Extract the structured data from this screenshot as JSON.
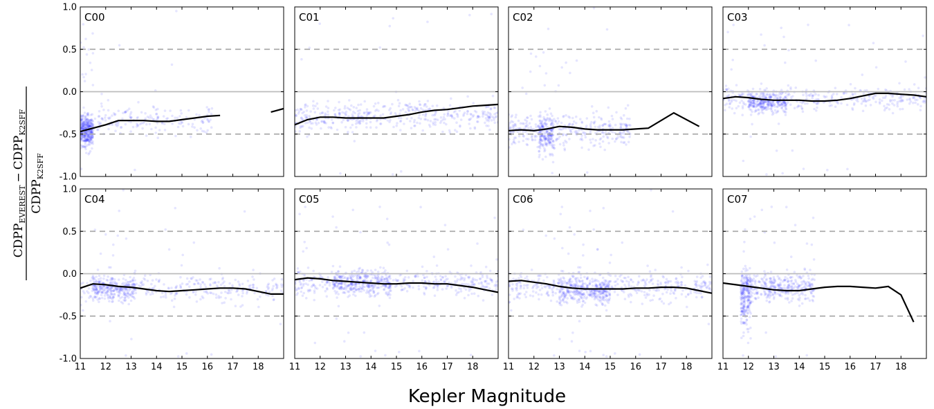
{
  "figure": {
    "xlabel": "Kepler Magnitude",
    "ylabel": {
      "numerator_prefix": "CDPP",
      "numerator_sub": "EVEREST",
      "minus": "−",
      "numerator_suffix": "CDPP",
      "numerator_suffix_sub": "K2SFF",
      "denominator": "CDPP",
      "denominator_sub": "K2SFF"
    },
    "colors": {
      "points": "#0000ff",
      "median": "#000000",
      "zero_line": "#bbbbbb",
      "dashed_lines": "#aaaaaa"
    }
  },
  "chart_data": [
    {
      "type": "scatter",
      "title": "C00",
      "xlim": [
        11,
        19
      ],
      "ylim": [
        -1.0,
        1.0
      ],
      "xticks": [
        11,
        12,
        13,
        14,
        15,
        16,
        17,
        18
      ],
      "yticks": [
        -1.0,
        -0.5,
        0.0,
        0.5,
        1.0
      ],
      "reference_lines": [
        {
          "y": 0.0,
          "style": "solid"
        },
        {
          "y": 0.5,
          "style": "dashed"
        },
        {
          "y": -0.5,
          "style": "dashed"
        }
      ],
      "median_segments": [
        [
          [
            11.0,
            -0.47
          ],
          [
            11.5,
            -0.43
          ],
          [
            12.0,
            -0.39
          ],
          [
            12.5,
            -0.34
          ],
          [
            13.0,
            -0.34
          ],
          [
            13.5,
            -0.34
          ],
          [
            14.0,
            -0.35
          ],
          [
            14.5,
            -0.35
          ],
          [
            15.0,
            -0.33
          ],
          [
            15.5,
            -0.31
          ],
          [
            16.0,
            -0.29
          ],
          [
            16.5,
            -0.28
          ]
        ],
        [
          [
            18.5,
            -0.24
          ],
          [
            19.0,
            -0.2
          ]
        ]
      ],
      "point_density": [
        {
          "x": [
            11.0,
            11.5
          ],
          "y_center": -0.47,
          "spread": 0.16,
          "weight": 8
        },
        {
          "x": [
            11.5,
            16.2
          ],
          "y_center": -0.33,
          "spread": 0.14,
          "weight": 4
        }
      ]
    },
    {
      "type": "scatter",
      "title": "C01",
      "xlim": [
        11,
        19
      ],
      "ylim": [
        -1.0,
        1.0
      ],
      "xticks": [
        11,
        12,
        13,
        14,
        15,
        16,
        17,
        18
      ],
      "yticks": [
        -1.0,
        -0.5,
        0.0,
        0.5,
        1.0
      ],
      "reference_lines": [
        {
          "y": 0.0,
          "style": "solid"
        },
        {
          "y": 0.5,
          "style": "dashed"
        },
        {
          "y": -0.5,
          "style": "dashed"
        }
      ],
      "median_segments": [
        [
          [
            11.0,
            -0.39
          ],
          [
            11.5,
            -0.33
          ],
          [
            12.0,
            -0.3
          ],
          [
            12.5,
            -0.3
          ],
          [
            13.0,
            -0.31
          ],
          [
            13.5,
            -0.31
          ],
          [
            14.0,
            -0.31
          ],
          [
            14.5,
            -0.31
          ],
          [
            15.0,
            -0.29
          ],
          [
            15.5,
            -0.27
          ],
          [
            16.0,
            -0.24
          ],
          [
            16.5,
            -0.22
          ],
          [
            17.0,
            -0.21
          ],
          [
            17.5,
            -0.19
          ],
          [
            18.0,
            -0.17
          ],
          [
            18.5,
            -0.16
          ],
          [
            19.0,
            -0.15
          ]
        ]
      ],
      "point_density": [
        {
          "x": [
            11.0,
            19.0
          ],
          "y_center": -0.28,
          "spread": 0.15,
          "weight": 10
        }
      ]
    },
    {
      "type": "scatter",
      "title": "C02",
      "xlim": [
        11,
        19
      ],
      "ylim": [
        -1.0,
        1.0
      ],
      "xticks": [
        11,
        12,
        13,
        14,
        15,
        16,
        17,
        18
      ],
      "yticks": [
        -1.0,
        -0.5,
        0.0,
        0.5,
        1.0
      ],
      "reference_lines": [
        {
          "y": 0.0,
          "style": "solid"
        },
        {
          "y": 0.5,
          "style": "dashed"
        },
        {
          "y": -0.5,
          "style": "dashed"
        }
      ],
      "median_segments": [
        [
          [
            11.0,
            -0.46
          ],
          [
            11.5,
            -0.45
          ],
          [
            12.0,
            -0.46
          ],
          [
            12.5,
            -0.44
          ],
          [
            13.0,
            -0.41
          ],
          [
            13.5,
            -0.42
          ],
          [
            14.0,
            -0.44
          ],
          [
            14.5,
            -0.45
          ],
          [
            15.0,
            -0.45
          ],
          [
            15.5,
            -0.45
          ],
          [
            16.0,
            -0.44
          ],
          [
            16.5,
            -0.43
          ],
          [
            17.5,
            -0.25
          ],
          [
            18.5,
            -0.41
          ]
        ]
      ],
      "point_density": [
        {
          "x": [
            11.0,
            15.8
          ],
          "y_center": -0.45,
          "spread": 0.17,
          "weight": 8
        },
        {
          "x": [
            12.2,
            12.8
          ],
          "y_center": -0.5,
          "spread": 0.2,
          "weight": 4
        }
      ]
    },
    {
      "type": "scatter",
      "title": "C03",
      "xlim": [
        11,
        19
      ],
      "ylim": [
        -1.0,
        1.0
      ],
      "xticks": [
        11,
        12,
        13,
        14,
        15,
        16,
        17,
        18
      ],
      "yticks": [
        -1.0,
        -0.5,
        0.0,
        0.5,
        1.0
      ],
      "reference_lines": [
        {
          "y": 0.0,
          "style": "solid"
        },
        {
          "y": 0.5,
          "style": "dashed"
        },
        {
          "y": -0.5,
          "style": "dashed"
        }
      ],
      "median_segments": [
        [
          [
            11.0,
            -0.08
          ],
          [
            11.5,
            -0.06
          ],
          [
            12.0,
            -0.07
          ],
          [
            12.5,
            -0.09
          ],
          [
            13.0,
            -0.1
          ],
          [
            13.5,
            -0.1
          ],
          [
            14.0,
            -0.1
          ],
          [
            14.5,
            -0.11
          ],
          [
            15.0,
            -0.11
          ],
          [
            15.5,
            -0.1
          ],
          [
            16.0,
            -0.08
          ],
          [
            16.5,
            -0.05
          ],
          [
            17.0,
            -0.02
          ],
          [
            17.5,
            -0.02
          ],
          [
            18.0,
            -0.03
          ],
          [
            18.5,
            -0.04
          ],
          [
            19.0,
            -0.06
          ]
        ]
      ],
      "point_density": [
        {
          "x": [
            11.0,
            19.0
          ],
          "y_center": -0.08,
          "spread": 0.12,
          "weight": 8
        },
        {
          "x": [
            12.0,
            13.5
          ],
          "y_center": -0.12,
          "spread": 0.1,
          "weight": 6
        }
      ]
    },
    {
      "type": "scatter",
      "title": "C04",
      "xlim": [
        11,
        19
      ],
      "ylim": [
        -1.0,
        1.0
      ],
      "xticks": [
        11,
        12,
        13,
        14,
        15,
        16,
        17,
        18
      ],
      "yticks": [
        -1.0,
        -0.5,
        0.0,
        0.5,
        1.0
      ],
      "reference_lines": [
        {
          "y": 0.0,
          "style": "solid"
        },
        {
          "y": 0.5,
          "style": "dashed"
        },
        {
          "y": -0.5,
          "style": "dashed"
        }
      ],
      "median_segments": [
        [
          [
            11.0,
            -0.17
          ],
          [
            11.5,
            -0.12
          ],
          [
            12.0,
            -0.13
          ],
          [
            12.5,
            -0.15
          ],
          [
            13.0,
            -0.16
          ],
          [
            13.5,
            -0.18
          ],
          [
            14.0,
            -0.2
          ],
          [
            14.5,
            -0.21
          ],
          [
            15.0,
            -0.2
          ],
          [
            15.5,
            -0.19
          ],
          [
            16.0,
            -0.18
          ],
          [
            16.5,
            -0.17
          ],
          [
            17.0,
            -0.17
          ],
          [
            17.5,
            -0.18
          ],
          [
            18.0,
            -0.21
          ],
          [
            18.5,
            -0.24
          ],
          [
            19.0,
            -0.24
          ]
        ]
      ],
      "point_density": [
        {
          "x": [
            11.0,
            19.0
          ],
          "y_center": -0.18,
          "spread": 0.15,
          "weight": 7
        },
        {
          "x": [
            11.5,
            13.2
          ],
          "y_center": -0.17,
          "spread": 0.12,
          "weight": 6
        }
      ]
    },
    {
      "type": "scatter",
      "title": "C05",
      "xlim": [
        11,
        19
      ],
      "ylim": [
        -1.0,
        1.0
      ],
      "xticks": [
        11,
        12,
        13,
        14,
        15,
        16,
        17,
        18
      ],
      "yticks": [
        -1.0,
        -0.5,
        0.0,
        0.5,
        1.0
      ],
      "reference_lines": [
        {
          "y": 0.0,
          "style": "solid"
        },
        {
          "y": 0.5,
          "style": "dashed"
        },
        {
          "y": -0.5,
          "style": "dashed"
        }
      ],
      "median_segments": [
        [
          [
            11.0,
            -0.07
          ],
          [
            11.5,
            -0.05
          ],
          [
            12.0,
            -0.06
          ],
          [
            12.5,
            -0.08
          ],
          [
            13.0,
            -0.09
          ],
          [
            13.5,
            -0.1
          ],
          [
            14.0,
            -0.11
          ],
          [
            14.5,
            -0.12
          ],
          [
            15.0,
            -0.12
          ],
          [
            15.5,
            -0.11
          ],
          [
            16.0,
            -0.11
          ],
          [
            16.5,
            -0.12
          ],
          [
            17.0,
            -0.12
          ],
          [
            17.5,
            -0.14
          ],
          [
            18.0,
            -0.16
          ],
          [
            18.5,
            -0.19
          ],
          [
            19.0,
            -0.22
          ]
        ]
      ],
      "point_density": [
        {
          "x": [
            11.0,
            19.0
          ],
          "y_center": -0.1,
          "spread": 0.13,
          "weight": 10
        },
        {
          "x": [
            12.5,
            14.8
          ],
          "y_center": -0.1,
          "spread": 0.12,
          "weight": 6
        }
      ]
    },
    {
      "type": "scatter",
      "title": "C06",
      "xlim": [
        11,
        19
      ],
      "ylim": [
        -1.0,
        1.0
      ],
      "xticks": [
        11,
        12,
        13,
        14,
        15,
        16,
        17,
        18
      ],
      "yticks": [
        -1.0,
        -0.5,
        0.0,
        0.5,
        1.0
      ],
      "reference_lines": [
        {
          "y": 0.0,
          "style": "solid"
        },
        {
          "y": 0.5,
          "style": "dashed"
        },
        {
          "y": -0.5,
          "style": "dashed"
        }
      ],
      "median_segments": [
        [
          [
            11.0,
            -0.09
          ],
          [
            11.5,
            -0.08
          ],
          [
            12.0,
            -0.1
          ],
          [
            12.5,
            -0.12
          ],
          [
            13.0,
            -0.15
          ],
          [
            13.5,
            -0.17
          ],
          [
            14.0,
            -0.18
          ],
          [
            14.5,
            -0.18
          ],
          [
            15.0,
            -0.18
          ],
          [
            15.5,
            -0.18
          ],
          [
            16.0,
            -0.17
          ],
          [
            16.5,
            -0.17
          ],
          [
            17.0,
            -0.16
          ],
          [
            17.5,
            -0.16
          ],
          [
            18.0,
            -0.17
          ],
          [
            18.5,
            -0.2
          ],
          [
            19.0,
            -0.23
          ]
        ]
      ],
      "point_density": [
        {
          "x": [
            11.0,
            19.0
          ],
          "y_center": -0.15,
          "spread": 0.15,
          "weight": 10
        },
        {
          "x": [
            13.0,
            15.0
          ],
          "y_center": -0.2,
          "spread": 0.14,
          "weight": 7
        }
      ]
    },
    {
      "type": "scatter",
      "title": "C07",
      "xlim": [
        11,
        19
      ],
      "ylim": [
        -1.0,
        1.0
      ],
      "xticks": [
        11,
        12,
        13,
        14,
        15,
        16,
        17,
        18
      ],
      "yticks": [
        -1.0,
        -0.5,
        0.0,
        0.5,
        1.0
      ],
      "reference_lines": [
        {
          "y": 0.0,
          "style": "solid"
        },
        {
          "y": 0.5,
          "style": "dashed"
        },
        {
          "y": -0.5,
          "style": "dashed"
        }
      ],
      "median_segments": [
        [
          [
            11.0,
            -0.11
          ],
          [
            11.5,
            -0.13
          ],
          [
            12.0,
            -0.15
          ],
          [
            12.5,
            -0.17
          ],
          [
            13.0,
            -0.19
          ],
          [
            13.5,
            -0.2
          ],
          [
            14.0,
            -0.2
          ],
          [
            14.5,
            -0.18
          ],
          [
            15.0,
            -0.16
          ],
          [
            15.5,
            -0.15
          ],
          [
            16.0,
            -0.15
          ],
          [
            16.5,
            -0.16
          ],
          [
            17.0,
            -0.17
          ],
          [
            17.5,
            -0.15
          ],
          [
            18.0,
            -0.25
          ],
          [
            18.5,
            -0.57
          ]
        ]
      ],
      "point_density": [
        {
          "x": [
            11.7,
            14.6
          ],
          "y_center": -0.15,
          "spread": 0.14,
          "weight": 9
        },
        {
          "x": [
            11.7,
            12.1
          ],
          "y_center": -0.3,
          "spread": 0.3,
          "weight": 4
        }
      ]
    }
  ]
}
